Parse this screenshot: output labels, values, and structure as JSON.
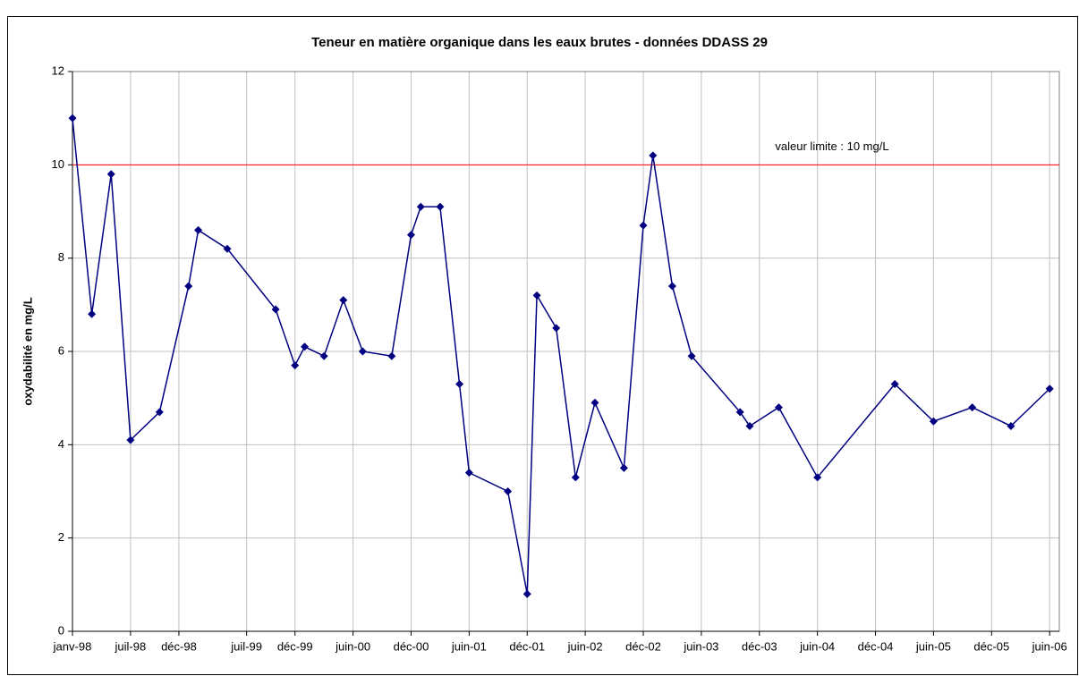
{
  "chart_data": {
    "type": "line",
    "title": "Teneur en matière organique dans les eaux brutes - données DDASS 29",
    "ylabel": "oxydabilité en mg/L",
    "x": [
      "1998-01",
      "1998-03",
      "1998-05",
      "1998-07",
      "1998-10",
      "1999-01",
      "1999-02",
      "1999-05",
      "1999-10",
      "1999-12",
      "2000-01",
      "2000-03",
      "2000-05",
      "2000-07",
      "2000-10",
      "2000-12",
      "2001-01",
      "2001-03",
      "2001-05",
      "2001-06",
      "2001-10",
      "2001-12",
      "2002-01",
      "2002-03",
      "2002-05",
      "2002-07",
      "2002-10",
      "2002-12",
      "2003-01",
      "2003-03",
      "2003-05",
      "2003-10",
      "2003-11",
      "2004-02",
      "2004-06",
      "2005-02",
      "2005-06",
      "2005-10",
      "2006-02",
      "2006-06"
    ],
    "series": [
      {
        "name": "oxydabilité",
        "color": "#000080",
        "values": [
          11,
          6.8,
          9.8,
          4.1,
          4.7,
          7.4,
          8.6,
          8.2,
          6.9,
          5.7,
          6.1,
          5.9,
          7.1,
          6.0,
          5.9,
          8.5,
          9.1,
          9.1,
          5.3,
          3.4,
          3.0,
          0.8,
          7.2,
          6.5,
          3.3,
          4.9,
          3.5,
          8.7,
          10.2,
          7.4,
          5.9,
          4.7,
          4.4,
          4.8,
          3.3,
          5.3,
          4.5,
          4.8,
          4.4,
          5.2
        ]
      }
    ],
    "reference_line": {
      "value": 10,
      "color": "#ff0000",
      "label": "valeur limite : 10 mg/L"
    },
    "xlim": [
      "1998-01",
      "2006-07"
    ],
    "xticks": [
      {
        "value": "1998-01",
        "label": "janv-98"
      },
      {
        "value": "1998-07",
        "label": "juil-98"
      },
      {
        "value": "1998-12",
        "label": "déc-98"
      },
      {
        "value": "1999-07",
        "label": "juil-99"
      },
      {
        "value": "1999-12",
        "label": "déc-99"
      },
      {
        "value": "2000-06",
        "label": "juin-00"
      },
      {
        "value": "2000-12",
        "label": "déc-00"
      },
      {
        "value": "2001-06",
        "label": "juin-01"
      },
      {
        "value": "2001-12",
        "label": "déc-01"
      },
      {
        "value": "2002-06",
        "label": "juin-02"
      },
      {
        "value": "2002-12",
        "label": "déc-02"
      },
      {
        "value": "2003-06",
        "label": "juin-03"
      },
      {
        "value": "2003-12",
        "label": "déc-03"
      },
      {
        "value": "2004-06",
        "label": "juin-04"
      },
      {
        "value": "2004-12",
        "label": "déc-04"
      },
      {
        "value": "2005-06",
        "label": "juin-05"
      },
      {
        "value": "2005-12",
        "label": "déc-05"
      },
      {
        "value": "2006-06",
        "label": "juin-06"
      }
    ],
    "ylim": [
      0,
      12
    ],
    "yticks": [
      0,
      2,
      4,
      6,
      8,
      10,
      12
    ],
    "grid": true
  }
}
